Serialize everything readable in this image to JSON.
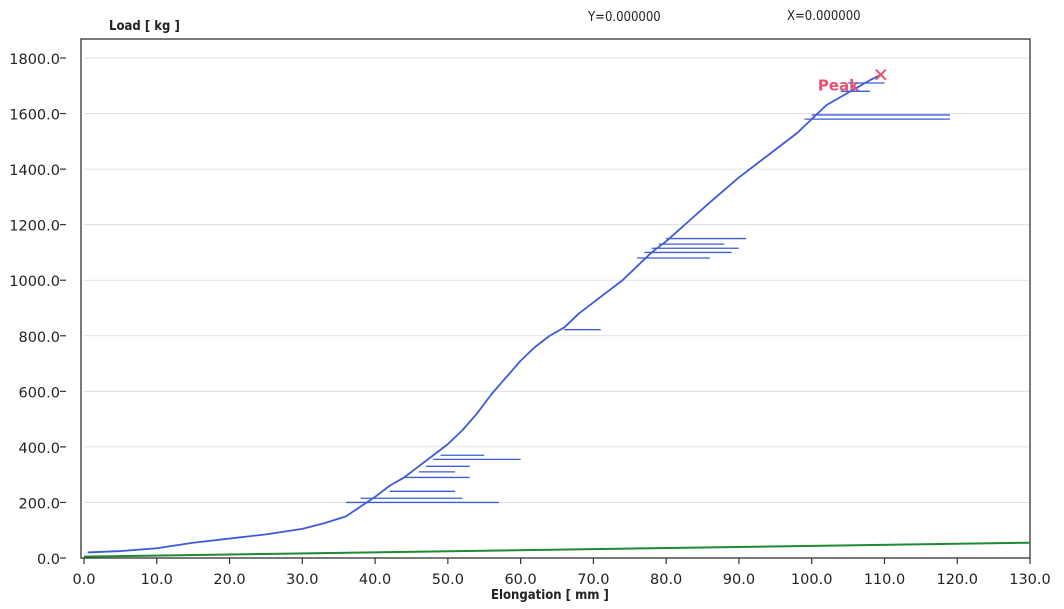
{
  "readouts": {
    "y": "Y=0.000000",
    "x": "X=0.000000"
  },
  "chart_data": {
    "type": "line",
    "ylabel": "Load [ kg ]",
    "xlabel": "Elongation [ mm ]",
    "xlim": [
      0,
      130
    ],
    "ylim": [
      0,
      1800
    ],
    "x_ticks": [
      "0.0",
      "10.0",
      "20.0",
      "30.0",
      "40.0",
      "50.0",
      "60.0",
      "70.0",
      "80.0",
      "90.0",
      "100.0",
      "110.0",
      "120.0",
      "130.0"
    ],
    "y_ticks": [
      "0.0",
      "200.0",
      "400.0",
      "600.0",
      "800.0",
      "1000.0",
      "1200.0",
      "1400.0",
      "1600.0",
      "1800.0"
    ],
    "grid": "horizontal",
    "colors": {
      "load_curve": "#3d5bd6",
      "baseline": "#1e8a32",
      "peak": "#e8516e",
      "frame": "#333333",
      "grid": "#d9d9d9"
    },
    "series": [
      {
        "x": [
          0.5,
          5,
          10,
          15,
          20,
          25,
          30,
          33,
          36,
          38,
          40,
          42,
          44,
          46,
          48,
          50,
          52,
          54,
          56,
          58,
          60,
          62,
          64,
          66,
          68,
          70,
          72,
          74,
          76,
          78,
          80,
          83,
          86,
          90,
          94,
          98,
          100,
          102,
          104,
          106,
          108,
          109.5
        ],
        "y": [
          20,
          25,
          35,
          55,
          70,
          85,
          105,
          125,
          150,
          185,
          220,
          260,
          290,
          330,
          370,
          410,
          460,
          520,
          590,
          650,
          710,
          760,
          800,
          830,
          880,
          920,
          960,
          1000,
          1050,
          1100,
          1140,
          1210,
          1280,
          1370,
          1450,
          1530,
          1580,
          1630,
          1660,
          1690,
          1720,
          1740
        ],
        "spikes": [
          {
            "x0": 36,
            "x1": 57,
            "y": 200
          },
          {
            "x0": 38,
            "x1": 52,
            "y": 215
          },
          {
            "x0": 42,
            "x1": 51,
            "y": 240
          },
          {
            "x0": 44,
            "x1": 53,
            "y": 290
          },
          {
            "x0": 46,
            "x1": 51,
            "y": 310
          },
          {
            "x0": 47,
            "x1": 53,
            "y": 330
          },
          {
            "x0": 48,
            "x1": 60,
            "y": 355
          },
          {
            "x0": 49,
            "x1": 55,
            "y": 370
          },
          {
            "x0": 66,
            "x1": 71,
            "y": 822
          },
          {
            "x0": 76,
            "x1": 86,
            "y": 1080
          },
          {
            "x0": 77,
            "x1": 89,
            "y": 1100
          },
          {
            "x0": 78,
            "x1": 90,
            "y": 1115
          },
          {
            "x0": 79,
            "x1": 88,
            "y": 1130
          },
          {
            "x0": 80,
            "x1": 91,
            "y": 1150
          },
          {
            "x0": 99,
            "x1": 119,
            "y": 1580
          },
          {
            "x0": 100,
            "x1": 119,
            "y": 1595
          },
          {
            "x0": 104,
            "x1": 108,
            "y": 1680
          },
          {
            "x0": 105,
            "x1": 110,
            "y": 1710
          }
        ]
      },
      {
        "x": [
          0,
          130
        ],
        "y": [
          5,
          55
        ]
      }
    ],
    "annotations": [
      {
        "text": "Peak",
        "x": 109.5,
        "y": 1740
      }
    ]
  }
}
